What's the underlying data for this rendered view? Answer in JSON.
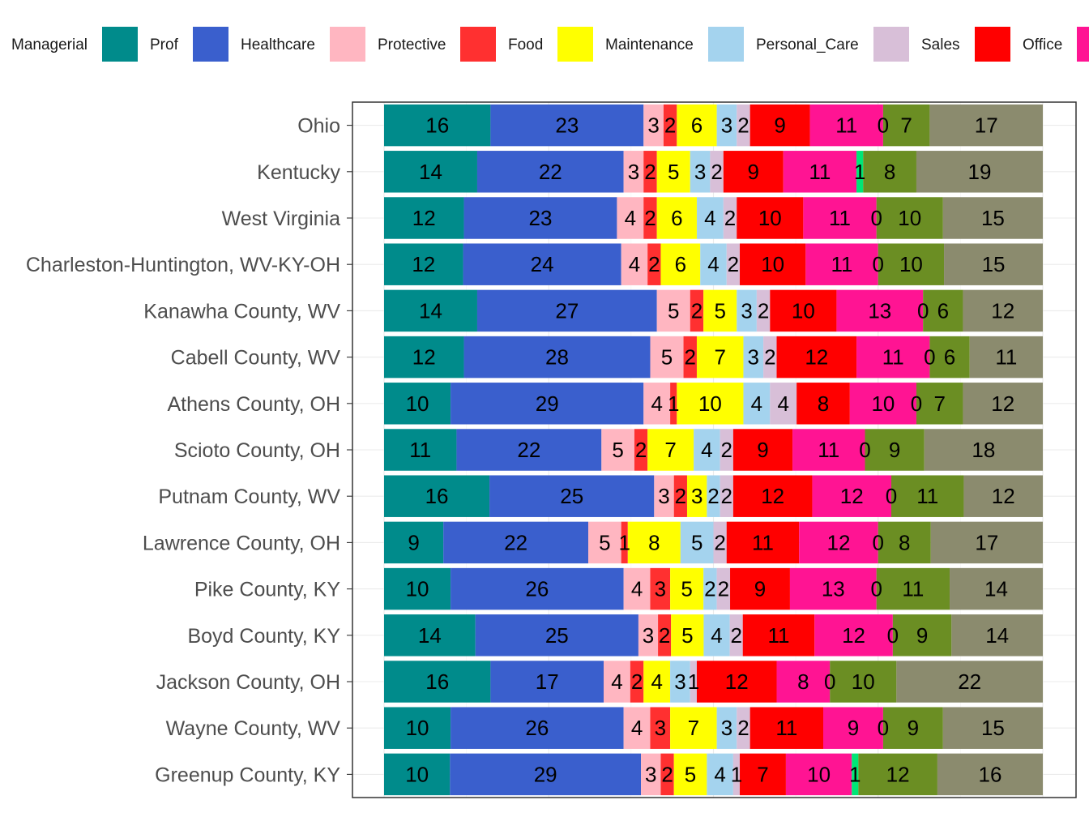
{
  "chart_data": {
    "type": "bar",
    "orientation": "horizontal",
    "stacked": "percent",
    "legend_position": "top",
    "xlim": [
      0,
      100
    ],
    "grid": true,
    "categories": [
      "Ohio",
      "Kentucky",
      "West Virginia",
      "Charleston-Huntington, WV-KY-OH",
      "Kanawha County, WV",
      "Cabell County, WV",
      "Athens County, OH",
      "Scioto County, OH",
      "Putnam County, WV",
      "Lawrence County, OH",
      "Pike County, KY",
      "Boyd County, KY",
      "Jackson County, OH",
      "Wayne County, WV",
      "Greenup County, KY"
    ],
    "series": [
      {
        "name": "Managerial",
        "color": "#008B8B",
        "values": [
          16,
          14,
          12,
          12,
          14,
          12,
          10,
          11,
          16,
          9,
          10,
          14,
          16,
          10,
          10
        ]
      },
      {
        "name": "Prof",
        "color": "#3A5FCD",
        "values": [
          23,
          22,
          23,
          24,
          27,
          28,
          29,
          22,
          25,
          22,
          26,
          25,
          17,
          26,
          29
        ]
      },
      {
        "name": "Healthcare",
        "color": "#FFB6C1",
        "values": [
          3,
          3,
          4,
          4,
          5,
          5,
          4,
          5,
          3,
          5,
          4,
          3,
          4,
          4,
          3
        ]
      },
      {
        "name": "Protective",
        "color": "#FF3030",
        "values": [
          2,
          2,
          2,
          2,
          2,
          2,
          1,
          2,
          2,
          1,
          3,
          2,
          2,
          3,
          2
        ]
      },
      {
        "name": "Food",
        "color": "#FFFF00",
        "values": [
          6,
          5,
          6,
          6,
          5,
          7,
          10,
          7,
          3,
          8,
          5,
          5,
          4,
          7,
          5
        ]
      },
      {
        "name": "Maintenance",
        "color": "#A4D3EE",
        "values": [
          3,
          3,
          4,
          4,
          3,
          3,
          4,
          4,
          2,
          5,
          2,
          4,
          3,
          3,
          4
        ]
      },
      {
        "name": "Personal_Care",
        "color": "#D8BFD8",
        "values": [
          2,
          2,
          2,
          2,
          2,
          2,
          4,
          2,
          2,
          2,
          2,
          2,
          1,
          2,
          1
        ]
      },
      {
        "name": "Sales",
        "color": "#FF0000",
        "values": [
          9,
          9,
          10,
          10,
          10,
          12,
          8,
          9,
          12,
          11,
          9,
          11,
          12,
          11,
          7
        ]
      },
      {
        "name": "Office",
        "color": "#FF1493",
        "values": [
          11,
          11,
          11,
          11,
          13,
          11,
          10,
          11,
          12,
          12,
          13,
          12,
          8,
          9,
          10
        ]
      },
      {
        "name": "",
        "color": "#00E676",
        "values": [
          0,
          1,
          0,
          0,
          0,
          0,
          0,
          0,
          0,
          0,
          0,
          0,
          0,
          0,
          1
        ]
      },
      {
        "name": "",
        "color": "#6B8E23",
        "values": [
          7,
          8,
          10,
          10,
          6,
          6,
          7,
          9,
          11,
          8,
          11,
          9,
          10,
          9,
          12
        ]
      },
      {
        "name": "",
        "color": "#8B8B6E",
        "values": [
          17,
          19,
          15,
          15,
          12,
          11,
          12,
          18,
          12,
          17,
          14,
          14,
          22,
          15,
          16
        ]
      }
    ]
  }
}
